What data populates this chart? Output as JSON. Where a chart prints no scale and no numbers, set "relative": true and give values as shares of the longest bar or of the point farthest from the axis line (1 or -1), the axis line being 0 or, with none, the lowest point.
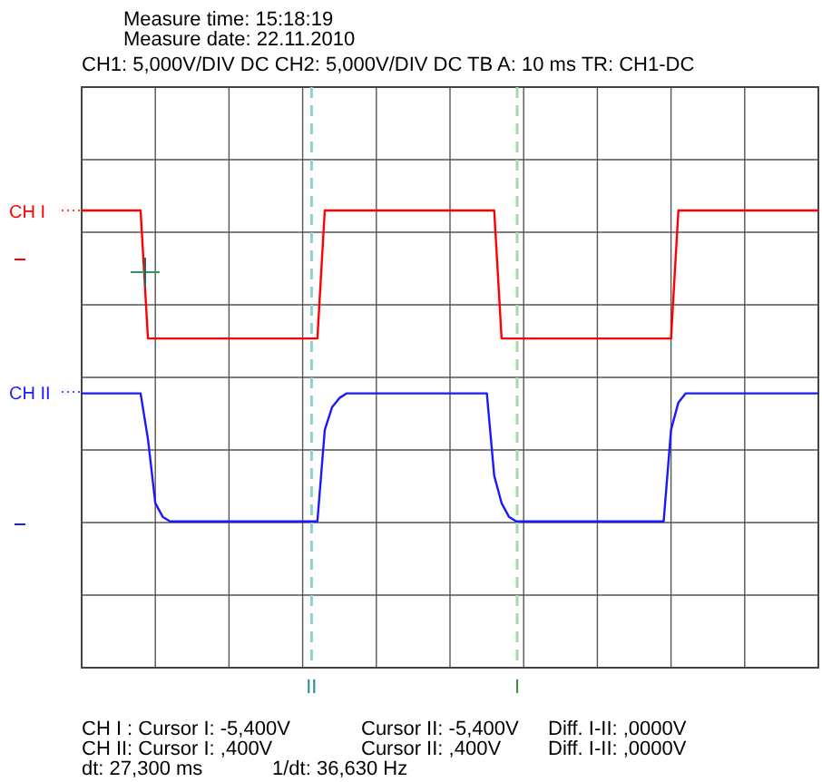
{
  "chart_data": {
    "type": "line",
    "relative": true,
    "title": "Measure time: 15:18:19",
    "subtitle": "Measure date: 22.11.2010",
    "categories": [
      null,
      null,
      null,
      null,
      null,
      null,
      null,
      null,
      null,
      null,
      null,
      null,
      null,
      null,
      null,
      null,
      null,
      null,
      null,
      null,
      null,
      null,
      null,
      null,
      null,
      null,
      null,
      null,
      null,
      null,
      null,
      null,
      null,
      null,
      null,
      null,
      null,
      null,
      null,
      null,
      null,
      null,
      null,
      null,
      null,
      null,
      null,
      null,
      null,
      null,
      null,
      null,
      null,
      null,
      null,
      null,
      null,
      null,
      null,
      null,
      null,
      null,
      null,
      null,
      null,
      null,
      null,
      null,
      null,
      null,
      null,
      null,
      null,
      null,
      null,
      null,
      null,
      null,
      null,
      null,
      null,
      null,
      null,
      null,
      null,
      null,
      null,
      null,
      null,
      null,
      null,
      null,
      null,
      null,
      null,
      null,
      null,
      null,
      null,
      null,
      null
    ],
    "series": [
      {
        "name": "CH I",
        "color": "#ff0000",
        "values": [
          1,
          1,
          1,
          1,
          1,
          1,
          1,
          1,
          1,
          0.72,
          0.72,
          0.72,
          0.72,
          0.72,
          0.72,
          0.72,
          0.72,
          0.72,
          0.72,
          0.72,
          0.72,
          0.72,
          0.72,
          0.72,
          0.72,
          0.72,
          0.72,
          0.72,
          0.72,
          0.72,
          0.72,
          0.72,
          0.72,
          1,
          1,
          1,
          1,
          1,
          1,
          1,
          1,
          1,
          1,
          1,
          1,
          1,
          1,
          1,
          1,
          1,
          1,
          1,
          1,
          1,
          1,
          1,
          1,
          0.72,
          0.72,
          0.72,
          0.72,
          0.72,
          0.72,
          0.72,
          0.72,
          0.72,
          0.72,
          0.72,
          0.72,
          0.72,
          0.72,
          0.72,
          0.72,
          0.72,
          0.72,
          0.72,
          0.72,
          0.72,
          0.72,
          0.72,
          0.72,
          1,
          1,
          1,
          1,
          1,
          1,
          1,
          1,
          1,
          1,
          1,
          1,
          1,
          1,
          1,
          1,
          1,
          1,
          1,
          1
        ]
      },
      {
        "name": "CH II",
        "color": "#1a1aff",
        "values": [
          0.6,
          0.6,
          0.6,
          0.6,
          0.6,
          0.6,
          0.6,
          0.6,
          0.6,
          0.5,
          0.36,
          0.33,
          0.32,
          0.32,
          0.32,
          0.32,
          0.32,
          0.32,
          0.32,
          0.32,
          0.32,
          0.32,
          0.32,
          0.32,
          0.32,
          0.32,
          0.32,
          0.32,
          0.32,
          0.32,
          0.32,
          0.32,
          0.32,
          0.52,
          0.57,
          0.59,
          0.6,
          0.6,
          0.6,
          0.6,
          0.6,
          0.6,
          0.6,
          0.6,
          0.6,
          0.6,
          0.6,
          0.6,
          0.6,
          0.6,
          0.6,
          0.6,
          0.6,
          0.6,
          0.6,
          0.6,
          0.42,
          0.36,
          0.33,
          0.32,
          0.32,
          0.32,
          0.32,
          0.32,
          0.32,
          0.32,
          0.32,
          0.32,
          0.32,
          0.32,
          0.32,
          0.32,
          0.32,
          0.32,
          0.32,
          0.32,
          0.32,
          0.32,
          0.32,
          0.32,
          0.52,
          0.58,
          0.6,
          0.6,
          0.6,
          0.6,
          0.6,
          0.6,
          0.6,
          0.6,
          0.6,
          0.6,
          0.6,
          0.6,
          0.6,
          0.6,
          0.6,
          0.6,
          0.6,
          0.6,
          0.6
        ]
      }
    ],
    "annotations": [
      "II",
      "I",
      "CH1: 5,000V/DIV DC  CH2: 5,000V/DIV DC   TB A: 10 ms  TR: CH1-DC",
      "CH I :  Cursor I: -5,400V",
      "Cursor II: -5,400V",
      "Diff. I-II: ,0000V",
      "CH II:  Cursor I: ,400V",
      "Cursor II: ,400V",
      "Diff. I-II: ,0000V",
      "dt: 27,300 ms",
      "1/dt: 36,630 Hz"
    ],
    "grid": true,
    "legend": "left",
    "line_style": "solid"
  }
}
